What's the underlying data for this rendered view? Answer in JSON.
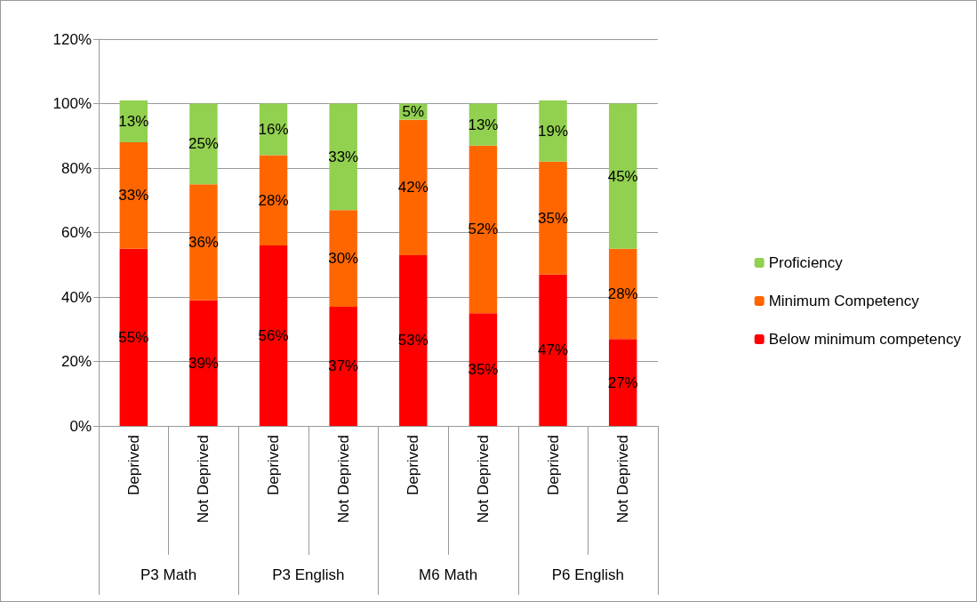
{
  "chart_data": {
    "type": "bar",
    "stacked": true,
    "categories": [
      "Deprived",
      "Not Deprived",
      "Deprived",
      "Not Deprived",
      "Deprived",
      "Not Deprived",
      "Deprived",
      "Not Deprived"
    ],
    "annotations": [
      "P3 Math",
      "P3 English",
      "M6 Math",
      "P6 English"
    ],
    "series": [
      {
        "name": "Below minimum competency",
        "color": "#ff0000",
        "values": [
          55,
          39,
          56,
          37,
          53,
          35,
          47,
          27
        ],
        "value_labels": [
          "55%",
          "39%",
          "56%",
          "37%",
          "53%",
          "35%",
          "47%",
          "27%"
        ]
      },
      {
        "name": "Minimum Competency",
        "color": "#ff6600",
        "values": [
          33,
          36,
          28,
          30,
          42,
          52,
          35,
          28
        ],
        "value_labels": [
          "33%",
          "36%",
          "28%",
          "30%",
          "42%",
          "52%",
          "35%",
          "28%"
        ]
      },
      {
        "name": "Proficiency",
        "color": "#92d050",
        "values": [
          13,
          25,
          16,
          33,
          5,
          13,
          19,
          45
        ],
        "value_labels": [
          "13%",
          "25%",
          "16%",
          "33%",
          "5%",
          "13%",
          "19%",
          "45%"
        ]
      }
    ],
    "ylim": [
      0,
      120
    ],
    "yticks": [
      {
        "value": 0,
        "label": "0%"
      },
      {
        "value": 20,
        "label": "20%"
      },
      {
        "value": 40,
        "label": "40%"
      },
      {
        "value": 60,
        "label": "60%"
      },
      {
        "value": 80,
        "label": "80%"
      },
      {
        "value": 100,
        "label": "100%"
      },
      {
        "value": 120,
        "label": "120%"
      }
    ],
    "grid": "y",
    "legend": "right"
  }
}
